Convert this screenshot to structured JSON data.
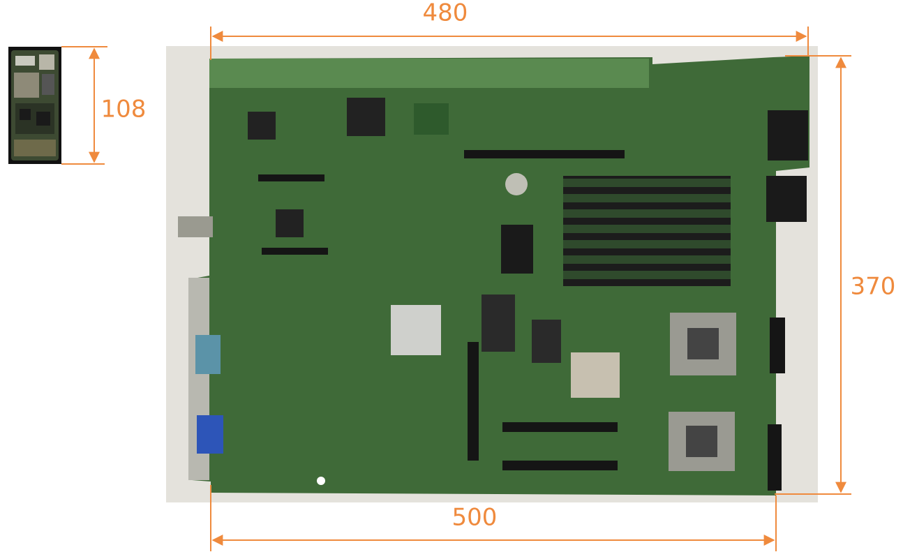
{
  "dimensions": {
    "small_height": 108,
    "large_top_width": 480,
    "large_height": 370,
    "large_bottom_width": 500
  }
}
